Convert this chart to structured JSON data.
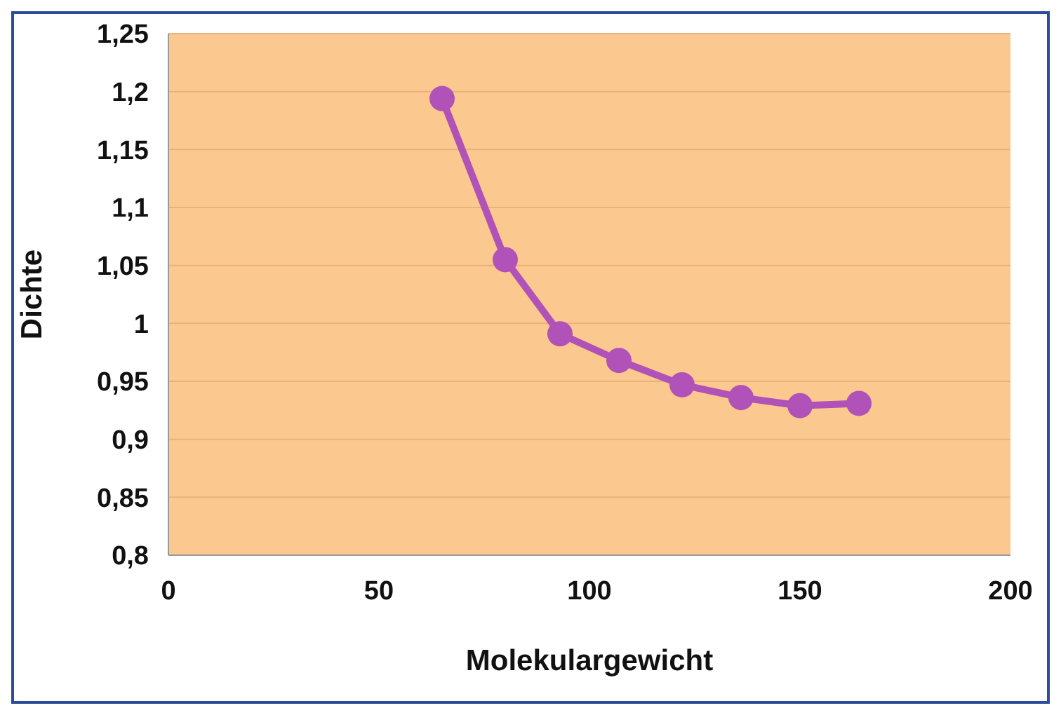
{
  "chart_data": {
    "type": "line",
    "xlabel": "Molekulargewicht",
    "ylabel": "Dichte",
    "x": [
      65,
      80,
      93,
      107,
      122,
      136,
      150,
      164
    ],
    "series": [
      {
        "color": "#b052b8",
        "values": [
          1.194,
          1.055,
          0.991,
          0.968,
          0.947,
          0.936,
          0.929,
          0.931
        ]
      }
    ],
    "xlim": [
      0,
      200
    ],
    "xticks": [
      0,
      50,
      100,
      150,
      200
    ],
    "ylim": [
      0.8,
      1.25
    ],
    "yticks": [
      {
        "value": 0.8,
        "label": "0,8"
      },
      {
        "value": 0.85,
        "label": "0,85"
      },
      {
        "value": 0.9,
        "label": "0,9"
      },
      {
        "value": 0.95,
        "label": "0,95"
      },
      {
        "value": 1,
        "label": "1"
      },
      {
        "value": 1.05,
        "label": "1,05"
      },
      {
        "value": 1.1,
        "label": "1,1"
      },
      {
        "value": 1.15,
        "label": "1,15"
      },
      {
        "value": 1.2,
        "label": "1,2"
      },
      {
        "value": 1.25,
        "label": "1,25"
      }
    ],
    "grid": "y",
    "marker": "circle",
    "line_style": "solid",
    "legend": false
  }
}
